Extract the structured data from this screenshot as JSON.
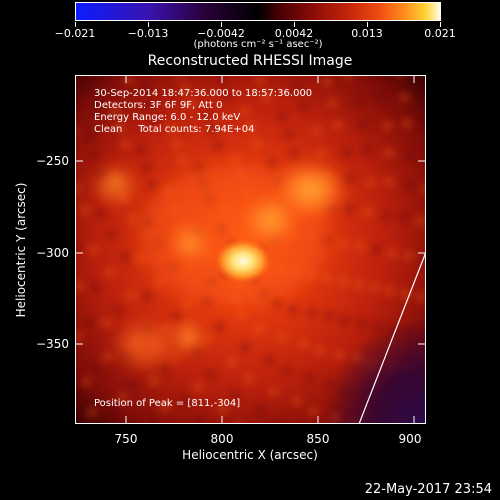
{
  "colorbar": {
    "tick_labels": [
      "−0.021",
      "−0.013",
      "−0.0042",
      "0.0042",
      "0.013",
      "0.021"
    ],
    "units": "(photons cm⁻² s⁻¹ asec⁻²)"
  },
  "title": "Reconstructed RHESSI Image",
  "info": {
    "time_range": "30-Sep-2014 18:47:36.000 to 18:57:36.000",
    "detectors": "Detectors: 3F 6F 9F, Att 0",
    "energy": "Energy Range: 6.0 - 12.0 keV",
    "clean": "Clean     Total counts: 7.94E+04",
    "peak": "Position of Peak = [811,-304]"
  },
  "axes": {
    "xlabel": "Heliocentric X (arcsec)",
    "ylabel": "Heliocentric Y (arcsec)",
    "x_ticks": [
      "750",
      "800",
      "850",
      "900"
    ],
    "y_ticks": [
      "−250",
      "−300",
      "−350"
    ]
  },
  "footer": {
    "date": "22-May-2017 23:54"
  },
  "colors": {
    "background": "#000000",
    "core": "#fff8c8",
    "bright": "#ff9a2a",
    "mid": "#d0330e",
    "dim": "#7a0a08",
    "limb_line": "#ffffff"
  }
}
